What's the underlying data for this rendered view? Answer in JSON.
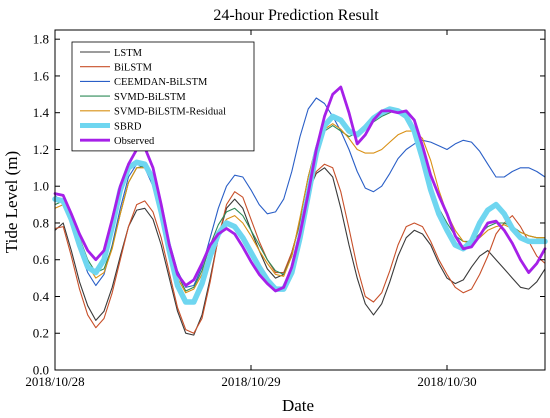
{
  "chart_data": {
    "type": "line",
    "title": "24-hour Prediction Result",
    "xlabel": "Date",
    "ylabel": "Tide Level (m)",
    "xlim": [
      0,
      60
    ],
    "ylim": [
      0,
      1.85
    ],
    "x_ticks": [
      {
        "x": 0,
        "label": "2018/10/28"
      },
      {
        "x": 24,
        "label": "2018/10/29"
      },
      {
        "x": 48,
        "label": "2018/10/30"
      }
    ],
    "y_ticks": [
      "0.0",
      "0.2",
      "0.4",
      "0.6",
      "0.8",
      "1.0",
      "1.2",
      "1.4",
      "1.6",
      "1.8"
    ],
    "grid": false,
    "legend_position": "top-left",
    "x": [
      0,
      1,
      2,
      3,
      4,
      5,
      6,
      7,
      8,
      9,
      10,
      11,
      12,
      13,
      14,
      15,
      16,
      17,
      18,
      19,
      20,
      21,
      22,
      23,
      24,
      25,
      26,
      27,
      28,
      29,
      30,
      31,
      32,
      33,
      34,
      35,
      36,
      37,
      38,
      39,
      40,
      41,
      42,
      43,
      44,
      45,
      46,
      47,
      48,
      49,
      50,
      51,
      52,
      53,
      54,
      55,
      56,
      57,
      58,
      59,
      60
    ],
    "series": [
      {
        "name": "LSTM",
        "color": "#3a3a3a",
        "width": 1.1,
        "values": [
          0.76,
          0.8,
          0.65,
          0.48,
          0.35,
          0.27,
          0.32,
          0.45,
          0.62,
          0.78,
          0.87,
          0.88,
          0.82,
          0.68,
          0.5,
          0.32,
          0.2,
          0.19,
          0.3,
          0.5,
          0.72,
          0.88,
          0.93,
          0.88,
          0.76,
          0.65,
          0.55,
          0.5,
          0.52,
          0.64,
          0.8,
          0.97,
          1.07,
          1.1,
          1.05,
          0.88,
          0.68,
          0.5,
          0.36,
          0.3,
          0.36,
          0.48,
          0.62,
          0.72,
          0.76,
          0.74,
          0.68,
          0.58,
          0.5,
          0.47,
          0.49,
          0.56,
          0.62,
          0.65,
          0.6,
          0.55,
          0.5,
          0.45,
          0.44,
          0.48,
          0.55
        ]
      },
      {
        "name": "BiLSTM",
        "color": "#c8502a",
        "width": 1.1,
        "values": [
          0.77,
          0.78,
          0.62,
          0.44,
          0.3,
          0.23,
          0.28,
          0.42,
          0.6,
          0.78,
          0.9,
          0.92,
          0.86,
          0.72,
          0.53,
          0.34,
          0.22,
          0.2,
          0.28,
          0.48,
          0.72,
          0.9,
          0.97,
          0.94,
          0.82,
          0.7,
          0.6,
          0.53,
          0.53,
          0.64,
          0.8,
          0.98,
          1.08,
          1.12,
          1.1,
          0.97,
          0.77,
          0.56,
          0.4,
          0.37,
          0.42,
          0.54,
          0.68,
          0.78,
          0.8,
          0.78,
          0.7,
          0.6,
          0.52,
          0.45,
          0.42,
          0.44,
          0.52,
          0.62,
          0.74,
          0.8,
          0.84,
          0.78,
          0.7,
          0.62,
          0.58
        ]
      },
      {
        "name": "CEEMDAN-BiLSTM",
        "color": "#2a5fc7",
        "width": 1.1,
        "values": [
          0.95,
          0.9,
          0.8,
          0.65,
          0.53,
          0.46,
          0.52,
          0.68,
          0.88,
          1.05,
          1.12,
          1.1,
          1.0,
          0.86,
          0.7,
          0.54,
          0.45,
          0.46,
          0.56,
          0.72,
          0.88,
          1.0,
          1.06,
          1.05,
          0.98,
          0.9,
          0.85,
          0.86,
          0.93,
          1.08,
          1.27,
          1.42,
          1.48,
          1.45,
          1.38,
          1.3,
          1.2,
          1.08,
          0.99,
          0.97,
          1.0,
          1.07,
          1.15,
          1.2,
          1.23,
          1.25,
          1.24,
          1.22,
          1.2,
          1.23,
          1.25,
          1.24,
          1.19,
          1.12,
          1.05,
          1.05,
          1.08,
          1.1,
          1.1,
          1.08,
          1.05
        ]
      },
      {
        "name": "SVMD-BiLSTM",
        "color": "#2e8b57",
        "width": 1.1,
        "values": [
          0.9,
          0.92,
          0.85,
          0.72,
          0.6,
          0.53,
          0.55,
          0.67,
          0.85,
          1.02,
          1.1,
          1.11,
          1.04,
          0.88,
          0.69,
          0.52,
          0.43,
          0.45,
          0.54,
          0.68,
          0.79,
          0.86,
          0.88,
          0.84,
          0.76,
          0.68,
          0.6,
          0.54,
          0.52,
          0.62,
          0.82,
          1.05,
          1.22,
          1.3,
          1.33,
          1.3,
          1.27,
          1.29,
          1.32,
          1.35,
          1.38,
          1.4,
          1.42,
          1.4,
          1.32,
          1.18,
          1.0,
          0.88,
          0.8,
          0.73,
          0.7,
          0.7,
          0.74,
          0.78,
          0.8,
          0.8,
          0.78,
          0.75,
          0.73,
          0.72,
          0.72
        ]
      },
      {
        "name": "SVMD-BiLSTM-Residual",
        "color": "#d99015",
        "width": 1.1,
        "values": [
          0.88,
          0.9,
          0.82,
          0.68,
          0.57,
          0.5,
          0.53,
          0.66,
          0.85,
          1.02,
          1.1,
          1.1,
          1.02,
          0.86,
          0.68,
          0.5,
          0.42,
          0.44,
          0.52,
          0.65,
          0.76,
          0.82,
          0.84,
          0.8,
          0.73,
          0.65,
          0.58,
          0.52,
          0.51,
          0.62,
          0.83,
          1.05,
          1.22,
          1.31,
          1.34,
          1.31,
          1.26,
          1.2,
          1.18,
          1.18,
          1.2,
          1.24,
          1.28,
          1.3,
          1.3,
          1.26,
          1.14,
          0.98,
          0.85,
          0.76,
          0.7,
          0.69,
          0.72,
          0.76,
          0.78,
          0.79,
          0.77,
          0.75,
          0.73,
          0.72,
          0.72
        ]
      },
      {
        "name": "SBRD",
        "color": "#6fd6f0",
        "width": 5.5,
        "values": [
          0.93,
          0.92,
          0.82,
          0.68,
          0.56,
          0.53,
          0.6,
          0.78,
          0.98,
          1.1,
          1.13,
          1.12,
          1.04,
          0.86,
          0.65,
          0.46,
          0.37,
          0.37,
          0.47,
          0.62,
          0.74,
          0.8,
          0.78,
          0.72,
          0.64,
          0.56,
          0.49,
          0.44,
          0.44,
          0.53,
          0.72,
          0.95,
          1.18,
          1.33,
          1.38,
          1.36,
          1.3,
          1.28,
          1.32,
          1.37,
          1.4,
          1.42,
          1.41,
          1.38,
          1.3,
          1.15,
          0.98,
          0.85,
          0.76,
          0.68,
          0.66,
          0.7,
          0.8,
          0.87,
          0.9,
          0.85,
          0.77,
          0.72,
          0.7,
          0.7,
          0.7
        ]
      },
      {
        "name": "Observed",
        "color": "#a620e8",
        "width": 2.8,
        "values": [
          0.96,
          0.95,
          0.85,
          0.74,
          0.65,
          0.6,
          0.65,
          0.82,
          1.0,
          1.12,
          1.2,
          1.21,
          1.1,
          0.9,
          0.68,
          0.52,
          0.46,
          0.49,
          0.58,
          0.68,
          0.74,
          0.77,
          0.74,
          0.67,
          0.59,
          0.52,
          0.47,
          0.43,
          0.45,
          0.56,
          0.74,
          0.96,
          1.2,
          1.38,
          1.5,
          1.54,
          1.4,
          1.23,
          1.28,
          1.36,
          1.41,
          1.41,
          1.4,
          1.41,
          1.36,
          1.22,
          1.06,
          0.95,
          0.85,
          0.73,
          0.66,
          0.67,
          0.73,
          0.8,
          0.81,
          0.76,
          0.69,
          0.6,
          0.53,
          0.58,
          0.66
        ]
      }
    ]
  }
}
